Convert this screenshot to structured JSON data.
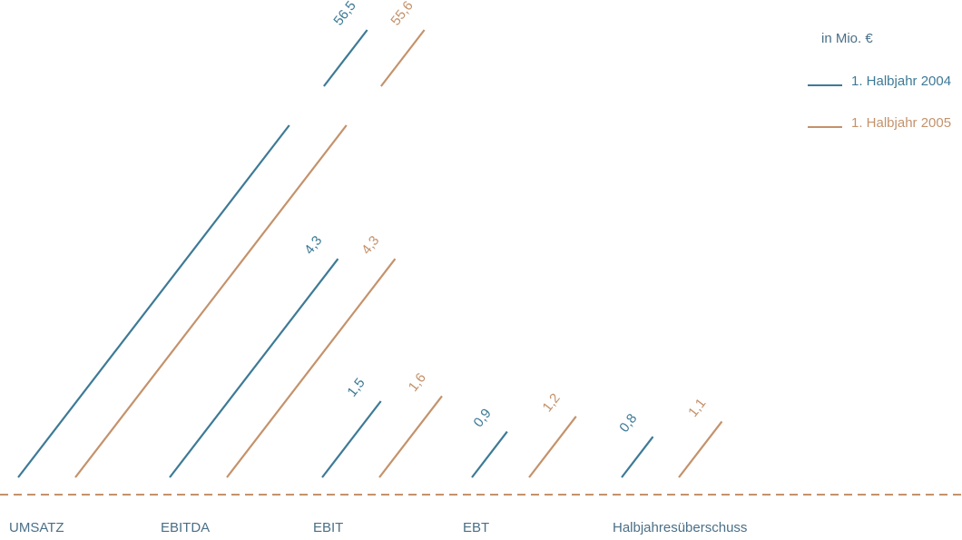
{
  "legend": {
    "title": "in Mio. €"
  },
  "colors": {
    "series_2004": "#3d7a96",
    "series_2005": "#c4926b",
    "axis": "#c4926b",
    "category_text": "#4a6f87"
  },
  "chart_data": {
    "type": "bar",
    "title": "",
    "xlabel": "",
    "ylabel": "",
    "unit": "in Mio. €",
    "categories": [
      "UMSATZ",
      "EBITDA",
      "EBIT",
      "EBT",
      "Halbjahresüberschuss"
    ],
    "series": [
      {
        "name": "1. Halbjahr 2004",
        "values": [
          56.5,
          4.3,
          1.5,
          0.9,
          0.8
        ],
        "labels": [
          "56,5",
          "4,3",
          "1,5",
          "0,9",
          "0,8"
        ]
      },
      {
        "name": "1. Halbjahr 2005",
        "values": [
          55.6,
          4.3,
          1.6,
          1.2,
          1.1
        ],
        "labels": [
          "55,6",
          "4,3",
          "1,6",
          "1,2",
          "1,1"
        ]
      }
    ],
    "grid": false,
    "legend_position": "top-right",
    "bar_style": "slanted-lines",
    "axis_break_on_first_category": true
  }
}
